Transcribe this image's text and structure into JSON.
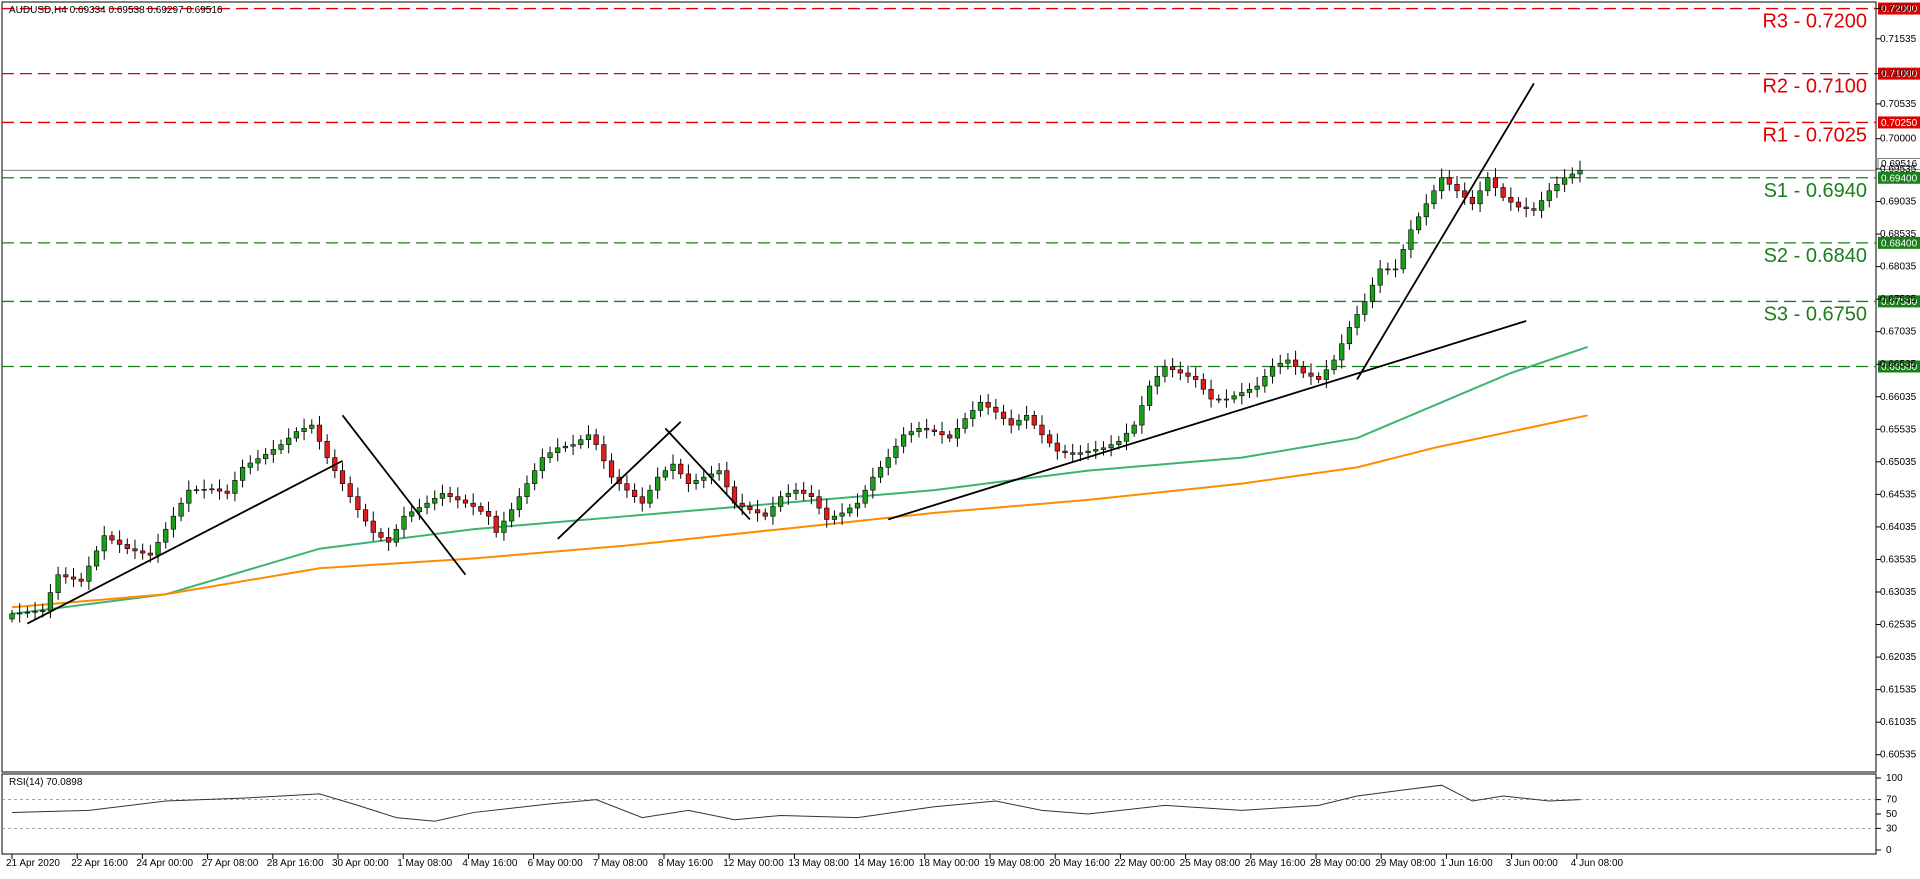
{
  "header": {
    "symbol_line": "AUDUSD,H4  0.69334 0.69538 0.69297 0.69516",
    "rsi_label": "RSI(14) 70.0898"
  },
  "colors": {
    "resistance": "#e00000",
    "support": "#1a7f1a",
    "bull_candle": "#1b9e1b",
    "bear_candle": "#e01b1b",
    "ma_fast": "#3cb371",
    "ma_slow": "#ff8c00",
    "trendline": "#000000",
    "price_line": "#555555",
    "rsi_line": "#333333"
  },
  "chart_data": [
    {
      "type": "candlestick",
      "title": "AUDUSD,H4",
      "ylim": [
        0.603,
        0.7207
      ],
      "yticks": [
        "0.72000",
        "0.71535",
        "0.71000",
        "0.70535",
        "0.70000",
        "0.69535",
        "0.69035",
        "0.68535",
        "0.68035",
        "0.67535",
        "0.67035",
        "0.66535",
        "0.66035",
        "0.65535",
        "0.65035",
        "0.64535",
        "0.64035",
        "0.63535",
        "0.63035",
        "0.62535",
        "0.62035",
        "0.61535",
        "0.61035",
        "0.60535"
      ],
      "xticks": [
        "21 Apr 2020",
        "22 Apr 16:00",
        "24 Apr 00:00",
        "27 Apr 08:00",
        "28 Apr 16:00",
        "30 Apr 00:00",
        "1 May 08:00",
        "4 May 16:00",
        "6 May 00:00",
        "7 May 08:00",
        "8 May 16:00",
        "12 May 00:00",
        "13 May 08:00",
        "14 May 16:00",
        "18 May 00:00",
        "19 May 08:00",
        "20 May 16:00",
        "22 May 00:00",
        "25 May 08:00",
        "26 May 16:00",
        "28 May 00:00",
        "29 May 08:00",
        "1 Jun 16:00",
        "3 Jun 00:00",
        "4 Jun 08:00"
      ],
      "current_price": "0.69516",
      "levels": [
        {
          "name": "R3 - 0.7200",
          "value": 0.72,
          "tag": "0.72000",
          "kind": "resistance"
        },
        {
          "name": "R2 - 0.7100",
          "value": 0.71,
          "tag": "0.71000",
          "kind": "resistance"
        },
        {
          "name": "R1 - 0.7025",
          "value": 0.7025,
          "tag": "0.70250",
          "kind": "resistance"
        },
        {
          "name": "S1 - 0.6940",
          "value": 0.694,
          "tag": "0.69400",
          "kind": "support"
        },
        {
          "name": "S2 - 0.6840",
          "value": 0.684,
          "tag": "0.68400",
          "kind": "support"
        },
        {
          "name": "S3 - 0.6750",
          "value": 0.675,
          "tag": "0.67500",
          "kind": "support"
        },
        {
          "name": "",
          "value": 0.665,
          "tag": "0.66500",
          "kind": "support"
        }
      ],
      "close_path": [
        [
          0,
          0.627
        ],
        [
          4,
          0.6275
        ],
        [
          6,
          0.633
        ],
        [
          9,
          0.632
        ],
        [
          12,
          0.639
        ],
        [
          15,
          0.637
        ],
        [
          18,
          0.636
        ],
        [
          20,
          0.64
        ],
        [
          23,
          0.646
        ],
        [
          26,
          0.6462
        ],
        [
          28,
          0.6455
        ],
        [
          30,
          0.6495
        ],
        [
          33,
          0.6515
        ],
        [
          35,
          0.653
        ],
        [
          37,
          0.655
        ],
        [
          39,
          0.656
        ],
        [
          41,
          0.651
        ],
        [
          43,
          0.647
        ],
        [
          45,
          0.643
        ],
        [
          47,
          0.6395
        ],
        [
          49,
          0.638
        ],
        [
          51,
          0.642
        ],
        [
          54,
          0.644
        ],
        [
          56,
          0.6455
        ],
        [
          58,
          0.6445
        ],
        [
          60,
          0.6435
        ],
        [
          62,
          0.642
        ],
        [
          63,
          0.6395
        ],
        [
          65,
          0.643
        ],
        [
          67,
          0.647
        ],
        [
          69,
          0.651
        ],
        [
          71,
          0.6525
        ],
        [
          73,
          0.653
        ],
        [
          75,
          0.6545
        ],
        [
          76,
          0.653
        ],
        [
          78,
          0.648
        ],
        [
          80,
          0.646
        ],
        [
          82,
          0.644
        ],
        [
          84,
          0.648
        ],
        [
          86,
          0.65
        ],
        [
          88,
          0.647
        ],
        [
          90,
          0.648
        ],
        [
          92,
          0.649
        ],
        [
          94,
          0.644
        ],
        [
          96,
          0.643
        ],
        [
          98,
          0.642
        ],
        [
          100,
          0.645
        ],
        [
          102,
          0.646
        ],
        [
          104,
          0.645
        ],
        [
          106,
          0.6415
        ],
        [
          108,
          0.6425
        ],
        [
          110,
          0.644
        ],
        [
          112,
          0.648
        ],
        [
          114,
          0.651
        ],
        [
          116,
          0.6545
        ],
        [
          118,
          0.6555
        ],
        [
          120,
          0.655
        ],
        [
          122,
          0.654
        ],
        [
          124,
          0.657
        ],
        [
          126,
          0.6595
        ],
        [
          128,
          0.658
        ],
        [
          130,
          0.656
        ],
        [
          132,
          0.6575
        ],
        [
          134,
          0.6545
        ],
        [
          136,
          0.652
        ],
        [
          138,
          0.6515
        ],
        [
          140,
          0.652
        ],
        [
          142,
          0.6525
        ],
        [
          144,
          0.6535
        ],
        [
          146,
          0.656
        ],
        [
          148,
          0.662
        ],
        [
          150,
          0.665
        ],
        [
          152,
          0.664
        ],
        [
          154,
          0.663
        ],
        [
          156,
          0.66
        ],
        [
          158,
          0.66
        ],
        [
          160,
          0.661
        ],
        [
          162,
          0.662
        ],
        [
          164,
          0.665
        ],
        [
          166,
          0.666
        ],
        [
          168,
          0.664
        ],
        [
          170,
          0.663
        ],
        [
          172,
          0.666
        ],
        [
          174,
          0.671
        ],
        [
          176,
          0.675
        ],
        [
          178,
          0.68
        ],
        [
          180,
          0.68
        ],
        [
          182,
          0.686
        ],
        [
          184,
          0.69
        ],
        [
          186,
          0.694
        ],
        [
          188,
          0.692
        ],
        [
          190,
          0.69
        ],
        [
          192,
          0.694
        ],
        [
          194,
          0.691
        ],
        [
          196,
          0.6895
        ],
        [
          198,
          0.689
        ],
        [
          200,
          0.692
        ],
        [
          202,
          0.694
        ],
        [
          204,
          0.69516
        ]
      ],
      "series": [
        {
          "name": "",
          "kind": "ma_fast",
          "x": [
            0,
            20,
            40,
            60,
            80,
            100,
            120,
            140,
            160,
            175,
            185,
            195,
            205
          ],
          "y": [
            0.627,
            0.63,
            0.637,
            0.64,
            0.642,
            0.644,
            0.646,
            0.649,
            0.651,
            0.654,
            0.659,
            0.664,
            0.668
          ]
        },
        {
          "name": "",
          "kind": "ma_slow",
          "x": [
            0,
            20,
            40,
            60,
            80,
            100,
            120,
            140,
            160,
            175,
            185,
            195,
            205
          ],
          "y": [
            0.628,
            0.63,
            0.634,
            0.6355,
            0.6375,
            0.64,
            0.6425,
            0.6445,
            0.647,
            0.6495,
            0.6525,
            0.655,
            0.6575
          ]
        }
      ],
      "trendlines": [
        {
          "x": [
            2,
            43
          ],
          "y": [
            0.6255,
            0.6505
          ]
        },
        {
          "x": [
            43,
            59
          ],
          "y": [
            0.6575,
            0.633
          ]
        },
        {
          "x": [
            71,
            87
          ],
          "y": [
            0.6385,
            0.6565
          ]
        },
        {
          "x": [
            85,
            96
          ],
          "y": [
            0.6555,
            0.6415
          ]
        },
        {
          "x": [
            114,
            197
          ],
          "y": [
            0.6415,
            0.672
          ]
        },
        {
          "x": [
            175,
            198
          ],
          "y": [
            0.663,
            0.7085
          ]
        }
      ]
    },
    {
      "type": "line",
      "title": "RSI(14) 70.0898",
      "ylim": [
        0,
        100
      ],
      "yticks": [
        "100",
        "70",
        "50",
        "30",
        "0"
      ],
      "reference_lines": [
        70,
        30
      ],
      "x": [
        0,
        10,
        20,
        30,
        40,
        45,
        50,
        55,
        60,
        70,
        76,
        82,
        88,
        94,
        100,
        110,
        120,
        128,
        134,
        140,
        150,
        160,
        170,
        175,
        180,
        186,
        190,
        194,
        200,
        204
      ],
      "y": [
        52,
        55,
        68,
        72,
        78,
        62,
        45,
        40,
        52,
        64,
        70,
        45,
        55,
        42,
        48,
        45,
        60,
        68,
        55,
        50,
        62,
        55,
        62,
        75,
        82,
        90,
        68,
        75,
        68,
        70
      ]
    }
  ]
}
